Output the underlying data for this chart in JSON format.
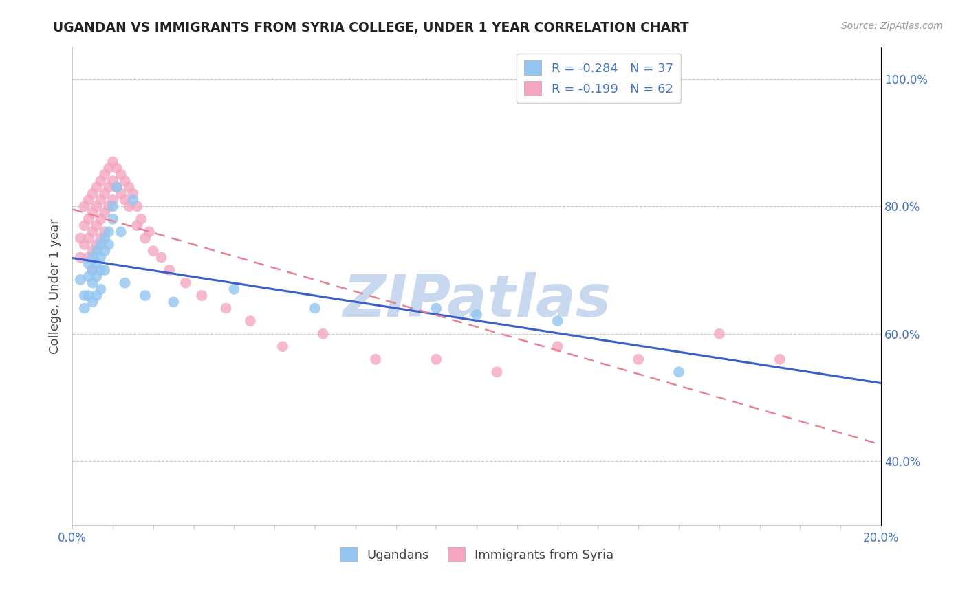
{
  "title": "UGANDAN VS IMMIGRANTS FROM SYRIA COLLEGE, UNDER 1 YEAR CORRELATION CHART",
  "source": "Source: ZipAtlas.com",
  "ylabel": "College, Under 1 year",
  "xlim": [
    0.0,
    0.2
  ],
  "ylim": [
    0.3,
    1.05
  ],
  "ugandans_R": "-0.284",
  "ugandans_N": "37",
  "syria_R": "-0.199",
  "syria_N": "62",
  "ugandan_color": "#92C5F0",
  "syria_color": "#F4A6C0",
  "ugandan_line_color": "#3A5FCD",
  "syria_line_color": "#E88090",
  "watermark_text": "ZIPatlas",
  "watermark_color": "#C8D8EE",
  "ugandans_x": [
    0.002,
    0.003,
    0.003,
    0.004,
    0.004,
    0.004,
    0.005,
    0.005,
    0.005,
    0.005,
    0.006,
    0.006,
    0.006,
    0.006,
    0.007,
    0.007,
    0.007,
    0.007,
    0.008,
    0.008,
    0.008,
    0.009,
    0.009,
    0.01,
    0.01,
    0.011,
    0.012,
    0.013,
    0.015,
    0.018,
    0.025,
    0.04,
    0.06,
    0.09,
    0.1,
    0.12,
    0.15
  ],
  "ugandans_y": [
    0.685,
    0.66,
    0.64,
    0.71,
    0.69,
    0.66,
    0.72,
    0.7,
    0.68,
    0.65,
    0.73,
    0.71,
    0.69,
    0.66,
    0.74,
    0.72,
    0.7,
    0.67,
    0.75,
    0.73,
    0.7,
    0.76,
    0.74,
    0.78,
    0.8,
    0.83,
    0.76,
    0.68,
    0.81,
    0.66,
    0.65,
    0.67,
    0.64,
    0.64,
    0.63,
    0.62,
    0.54
  ],
  "syria_x": [
    0.002,
    0.002,
    0.003,
    0.003,
    0.003,
    0.004,
    0.004,
    0.004,
    0.004,
    0.005,
    0.005,
    0.005,
    0.005,
    0.005,
    0.006,
    0.006,
    0.006,
    0.006,
    0.007,
    0.007,
    0.007,
    0.007,
    0.008,
    0.008,
    0.008,
    0.008,
    0.009,
    0.009,
    0.009,
    0.01,
    0.01,
    0.01,
    0.011,
    0.011,
    0.012,
    0.012,
    0.013,
    0.013,
    0.014,
    0.014,
    0.015,
    0.016,
    0.016,
    0.017,
    0.018,
    0.019,
    0.02,
    0.022,
    0.024,
    0.028,
    0.032,
    0.038,
    0.044,
    0.052,
    0.062,
    0.075,
    0.09,
    0.105,
    0.12,
    0.14,
    0.16,
    0.175
  ],
  "syria_y": [
    0.75,
    0.72,
    0.8,
    0.77,
    0.74,
    0.81,
    0.78,
    0.75,
    0.72,
    0.82,
    0.79,
    0.76,
    0.73,
    0.7,
    0.83,
    0.8,
    0.77,
    0.74,
    0.84,
    0.81,
    0.78,
    0.75,
    0.85,
    0.82,
    0.79,
    0.76,
    0.86,
    0.83,
    0.8,
    0.87,
    0.84,
    0.81,
    0.86,
    0.83,
    0.85,
    0.82,
    0.84,
    0.81,
    0.83,
    0.8,
    0.82,
    0.8,
    0.77,
    0.78,
    0.75,
    0.76,
    0.73,
    0.72,
    0.7,
    0.68,
    0.66,
    0.64,
    0.62,
    0.58,
    0.6,
    0.56,
    0.56,
    0.54,
    0.58,
    0.56,
    0.6,
    0.56
  ],
  "background_color": "#FFFFFF",
  "grid_color": "#BBBBBB"
}
